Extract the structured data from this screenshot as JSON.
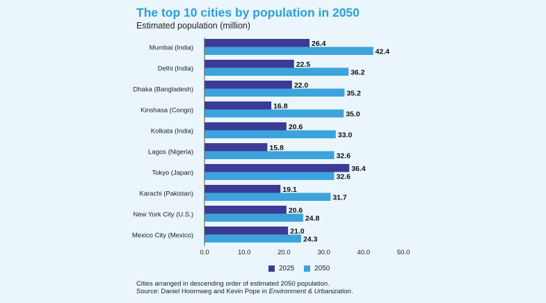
{
  "header": {
    "title": "The top 10 cities by population in 2050",
    "subtitle": "Estimated population (million)"
  },
  "colors": {
    "2025": "#3b3b96",
    "2050": "#3da3db"
  },
  "chart_data": {
    "type": "bar",
    "orientation": "horizontal",
    "categories": [
      "Mumbai (India)",
      "Delhi (India)",
      "Dhaka (Bangladesh)",
      "Kinshasa (Congo)",
      "Kolkata (India)",
      "Lagos (Nigeria)",
      "Tokyo (Japan)",
      "Karachi (Pakistan)",
      "New York City (U.S.)",
      "Mexico City (Mexico)"
    ],
    "series": [
      {
        "name": "2025",
        "values": [
          26.4,
          22.5,
          22.0,
          16.8,
          20.6,
          15.8,
          36.4,
          19.1,
          20.6,
          21.0
        ]
      },
      {
        "name": "2050",
        "values": [
          42.4,
          36.2,
          35.2,
          35.0,
          33.0,
          32.6,
          32.6,
          31.7,
          24.8,
          24.3
        ]
      }
    ],
    "value_labels": {
      "2025": [
        "26.4",
        "22.5",
        "22.0",
        "16.8",
        "20.6",
        "15.8",
        "36.4",
        "19.1",
        "20.6",
        "21.0"
      ],
      "2050": [
        "42.4",
        "36.2",
        "35.2",
        "35.0",
        "33.0",
        "32.6",
        "32.6",
        "31.7",
        "24.8",
        "24.3"
      ]
    },
    "x_ticks": [
      "0.0",
      "10.0",
      "20.0",
      "30.0",
      "40.0",
      "50.0"
    ],
    "xlim": [
      0,
      50
    ],
    "grid": false,
    "legend_position": "bottom"
  },
  "legend": {
    "label_2025": "2025",
    "label_2050": "2050"
  },
  "note": {
    "line1": "Cities arranged in descending order of estimated 2050 population.",
    "line2_prefix": "Source: Daniel Hoornweg and Kevin Pope in ",
    "line2_journal": "Environment & Urbanization",
    "line2_suffix": "."
  }
}
